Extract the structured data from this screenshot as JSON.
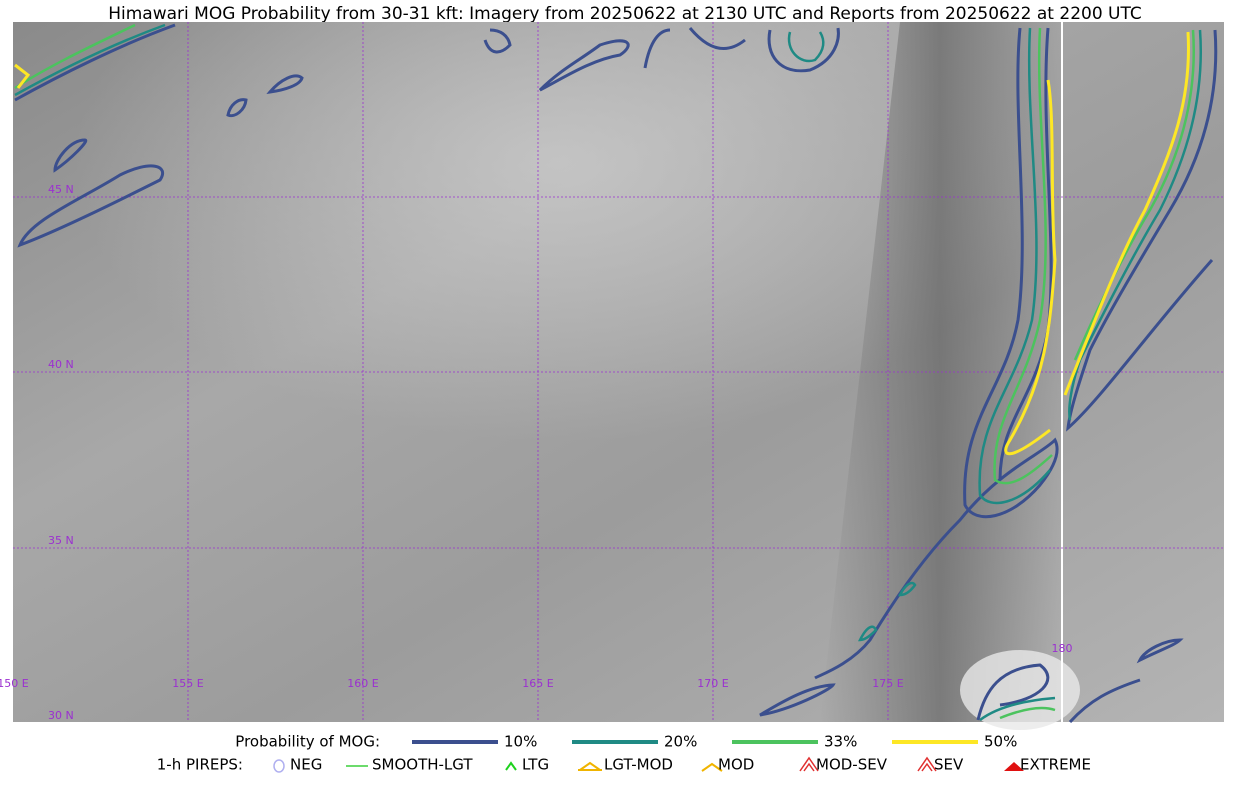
{
  "title": "Himawari MOG Probability from 30-31 kft: Imagery from 20250622 at 2130 UTC and Reports from 20250622 at 2200 UTC",
  "map": {
    "lat_labels": [
      "45 N",
      "40 N",
      "35 N",
      "30 N"
    ],
    "lon_labels": [
      "150 E",
      "155 E",
      "160 E",
      "165 E",
      "170 E",
      "175 E",
      "180"
    ]
  },
  "legend": {
    "probability": {
      "title": "Probability of MOG:",
      "items": [
        {
          "label": "10%",
          "color": "#3b4f8e"
        },
        {
          "label": "20%",
          "color": "#1f8a84"
        },
        {
          "label": "33%",
          "color": "#4cc35e"
        },
        {
          "label": "50%",
          "color": "#fde725"
        }
      ]
    },
    "pireps": {
      "title": "1-h PIREPS:",
      "items": [
        {
          "label": "NEG",
          "color": "#b0b0f0"
        },
        {
          "label": "SMOOTH-LGT",
          "color": "#3ccf3c"
        },
        {
          "label": "LTG",
          "color": "#1ed21e"
        },
        {
          "label": "LGT-MOD",
          "color": "#f0b400"
        },
        {
          "label": "MOD",
          "color": "#f0b400"
        },
        {
          "label": "MOD-SEV",
          "color": "#e03030"
        },
        {
          "label": "SEV",
          "color": "#e03030"
        },
        {
          "label": "EXTREME",
          "color": "#e01010"
        }
      ]
    }
  }
}
